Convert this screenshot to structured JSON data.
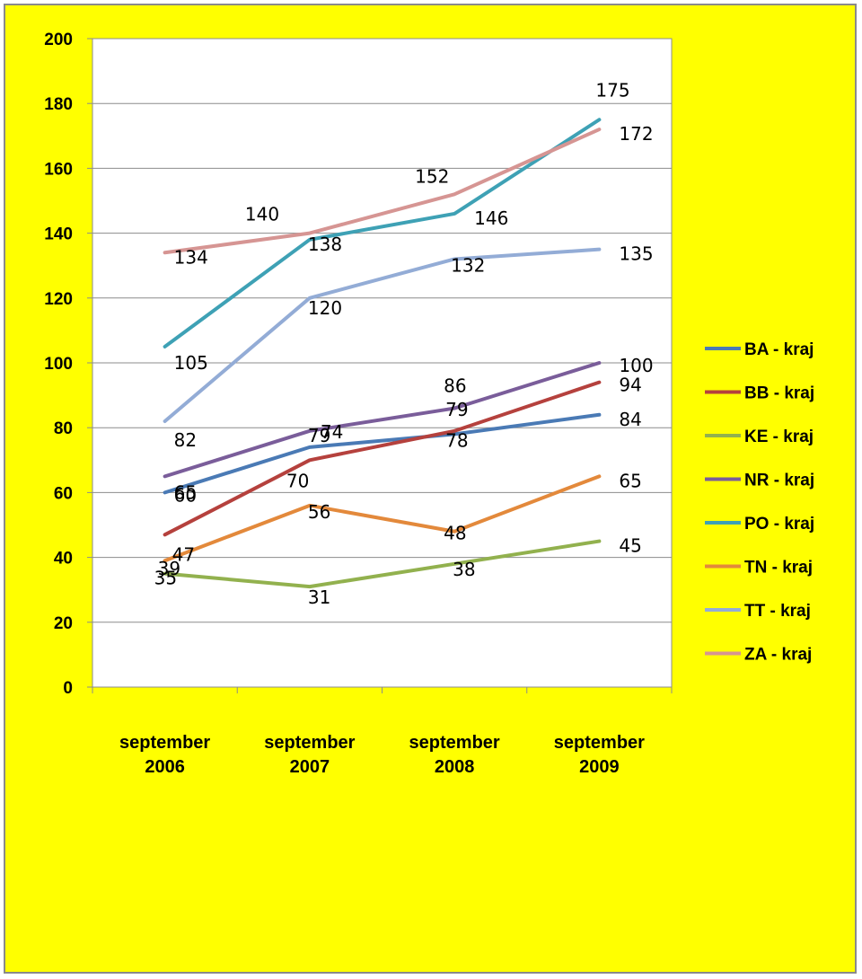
{
  "chart_data": {
    "type": "line",
    "title": "",
    "xlabel": "",
    "ylabel": "",
    "categories": [
      [
        "september",
        "2006"
      ],
      [
        "september",
        "2007"
      ],
      [
        "september",
        "2008"
      ],
      [
        "september",
        "2009"
      ]
    ],
    "ylim": [
      0,
      200
    ],
    "yticks": [
      0,
      20,
      40,
      60,
      80,
      100,
      120,
      140,
      160,
      180,
      200
    ],
    "grid": true,
    "legend_position": "right",
    "background_color": "#ffff00",
    "plot_background": "#ffffff",
    "series": [
      {
        "name": "BA - kraj",
        "color": "#4a7ab5",
        "values": [
          60,
          74,
          78,
          84
        ]
      },
      {
        "name": "BB - kraj",
        "color": "#b5413d",
        "values": [
          47,
          70,
          79,
          94
        ]
      },
      {
        "name": "KE - kraj",
        "color": "#92b14e",
        "values": [
          35,
          31,
          38,
          45
        ]
      },
      {
        "name": "NR - kraj",
        "color": "#7a5d9a",
        "values": [
          65,
          79,
          86,
          100
        ]
      },
      {
        "name": "PO - kraj",
        "color": "#3ea1b5",
        "values": [
          105,
          138,
          146,
          175
        ]
      },
      {
        "name": "TN - kraj",
        "color": "#e3893b",
        "values": [
          39,
          56,
          48,
          65
        ]
      },
      {
        "name": "TT - kraj",
        "color": "#93acd6",
        "values": [
          82,
          120,
          132,
          135
        ]
      },
      {
        "name": "ZA - kraj",
        "color": "#d69593",
        "values": [
          134,
          140,
          152,
          172
        ]
      }
    ]
  }
}
